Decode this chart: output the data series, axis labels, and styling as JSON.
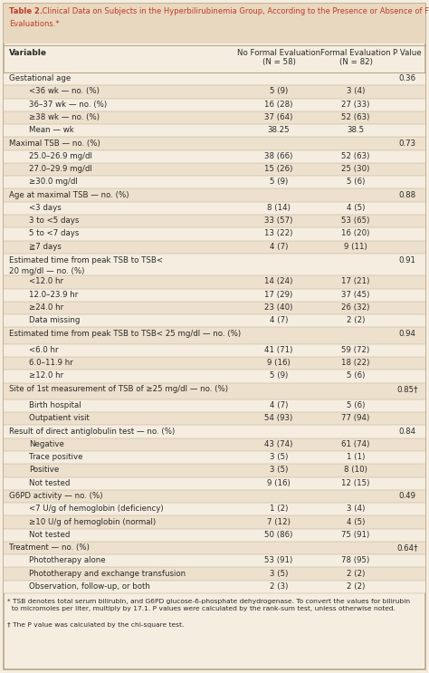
{
  "title_bold": "Table 2.",
  "title_rest": " Clinical Data on Subjects in the Hyperbilirubinemia Group, According to the Presence or Absence of Formal Evaluations.*",
  "col_headers": [
    "Variable",
    "No Formal Evaluation\n(N = 58)",
    "Formal Evaluation\n(N = 82)",
    "P Value"
  ],
  "background_color": "#f5ede0",
  "title_bg": "#e8d8c0",
  "row_light": "#f5ede0",
  "row_dark": "#ede0cc",
  "title_color": "#c0392b",
  "border_color": "#b8a88a",
  "text_color": "#2a2a2a",
  "rows": [
    {
      "label": "Gestational age",
      "val1": "",
      "val2": "",
      "pval": "0.36",
      "indent": false,
      "multiline": false
    },
    {
      "label": "<36 wk — no. (%)",
      "val1": "5 (9)",
      "val2": "3 (4)",
      "pval": "",
      "indent": true,
      "multiline": false
    },
    {
      "label": "36–37 wk — no. (%)",
      "val1": "16 (28)",
      "val2": "27 (33)",
      "pval": "",
      "indent": true,
      "multiline": false
    },
    {
      "label": "≥38 wk — no. (%)",
      "val1": "37 (64)",
      "val2": "52 (63)",
      "pval": "",
      "indent": true,
      "multiline": false
    },
    {
      "label": "Mean — wk",
      "val1": "38.25",
      "val2": "38.5",
      "pval": "",
      "indent": true,
      "multiline": false
    },
    {
      "label": "Maximal TSB — no. (%)",
      "val1": "",
      "val2": "",
      "pval": "0.73",
      "indent": false,
      "multiline": false
    },
    {
      "label": "25.0–26.9 mg/dl",
      "val1": "38 (66)",
      "val2": "52 (63)",
      "pval": "",
      "indent": true,
      "multiline": false
    },
    {
      "label": "27.0–29.9 mg/dl",
      "val1": "15 (26)",
      "val2": "25 (30)",
      "pval": "",
      "indent": true,
      "multiline": false
    },
    {
      "label": "≥30.0 mg/dl",
      "val1": "5 (9)",
      "val2": "5 (6)",
      "pval": "",
      "indent": true,
      "multiline": false
    },
    {
      "label": "Age at maximal TSB — no. (%)",
      "val1": "",
      "val2": "",
      "pval": "0.88",
      "indent": false,
      "multiline": false
    },
    {
      "label": "<3 days",
      "val1": "8 (14)",
      "val2": "4 (5)",
      "pval": "",
      "indent": true,
      "multiline": false
    },
    {
      "label": "3 to <5 days",
      "val1": "33 (57)",
      "val2": "53 (65)",
      "pval": "",
      "indent": true,
      "multiline": false
    },
    {
      "label": "5 to <7 days",
      "val1": "13 (22)",
      "val2": "16 (20)",
      "pval": "",
      "indent": true,
      "multiline": false
    },
    {
      "label": "≧7 days",
      "val1": "4 (7)",
      "val2": "9 (11)",
      "pval": "",
      "indent": true,
      "multiline": false
    },
    {
      "label": "Estimated time from peak TSB to TSB<\n20 mg/dl — no. (%)",
      "val1": "",
      "val2": "",
      "pval": "0.91",
      "indent": false,
      "multiline": true
    },
    {
      "label": "<12.0 hr",
      "val1": "14 (24)",
      "val2": "17 (21)",
      "pval": "",
      "indent": true,
      "multiline": false
    },
    {
      "label": "12.0–23.9 hr",
      "val1": "17 (29)",
      "val2": "37 (45)",
      "pval": "",
      "indent": true,
      "multiline": false
    },
    {
      "label": "≥24.0 hr",
      "val1": "23 (40)",
      "val2": "26 (32)",
      "pval": "",
      "indent": true,
      "multiline": false
    },
    {
      "label": "Data missing",
      "val1": "4 (7)",
      "val2": "2 (2)",
      "pval": "",
      "indent": true,
      "multiline": false
    },
    {
      "label": "Estimated time from peak TSB to TSB< 25 mg/dl — no. (%)",
      "val1": "",
      "val2": "",
      "pval": "0.94",
      "indent": false,
      "multiline": false
    },
    {
      "label": "<6.0 hr",
      "val1": "41 (71)",
      "val2": "59 (72)",
      "pval": "",
      "indent": true,
      "multiline": false
    },
    {
      "label": "6.0–11.9 hr",
      "val1": "9 (16)",
      "val2": "18 (22)",
      "pval": "",
      "indent": true,
      "multiline": false
    },
    {
      "label": "≥12.0 hr",
      "val1": "5 (9)",
      "val2": "5 (6)",
      "pval": "",
      "indent": true,
      "multiline": false
    },
    {
      "label": "Site of 1st measurement of TSB of ≥25 mg/dl — no. (%)",
      "val1": "",
      "val2": "",
      "pval": "0.85†",
      "indent": false,
      "multiline": false
    },
    {
      "label": "Birth hospital",
      "val1": "4 (7)",
      "val2": "5 (6)",
      "pval": "",
      "indent": true,
      "multiline": false
    },
    {
      "label": "Outpatient visit",
      "val1": "54 (93)",
      "val2": "77 (94)",
      "pval": "",
      "indent": true,
      "multiline": false
    },
    {
      "label": "Result of direct antiglobulin test — no. (%)",
      "val1": "",
      "val2": "",
      "pval": "0.84",
      "indent": false,
      "multiline": false
    },
    {
      "label": "Negative",
      "val1": "43 (74)",
      "val2": "61 (74)",
      "pval": "",
      "indent": true,
      "multiline": false
    },
    {
      "label": "Trace positive",
      "val1": "3 (5)",
      "val2": "1 (1)",
      "pval": "",
      "indent": true,
      "multiline": false
    },
    {
      "label": "Positive",
      "val1": "3 (5)",
      "val2": "8 (10)",
      "pval": "",
      "indent": true,
      "multiline": false
    },
    {
      "label": "Not tested",
      "val1": "9 (16)",
      "val2": "12 (15)",
      "pval": "",
      "indent": true,
      "multiline": false
    },
    {
      "label": "G6PD activity — no. (%)",
      "val1": "",
      "val2": "",
      "pval": "0.49",
      "indent": false,
      "multiline": false
    },
    {
      "label": "<7 U/g of hemoglobin (deficiency)",
      "val1": "1 (2)",
      "val2": "3 (4)",
      "pval": "",
      "indent": true,
      "multiline": false
    },
    {
      "label": "≥10 U/g of hemoglobin (normal)",
      "val1": "7 (12)",
      "val2": "4 (5)",
      "pval": "",
      "indent": true,
      "multiline": false
    },
    {
      "label": "Not tested",
      "val1": "50 (86)",
      "val2": "75 (91)",
      "pval": "",
      "indent": true,
      "multiline": false
    },
    {
      "label": "Treatment — no. (%)",
      "val1": "",
      "val2": "",
      "pval": "0.64†",
      "indent": false,
      "multiline": false
    },
    {
      "label": "Phototherapy alone",
      "val1": "53 (91)",
      "val2": "78 (95)",
      "pval": "",
      "indent": true,
      "multiline": false
    },
    {
      "label": "Phototherapy and exchange transfusion",
      "val1": "3 (5)",
      "val2": "2 (2)",
      "pval": "",
      "indent": true,
      "multiline": false
    },
    {
      "label": "Observation, follow-up, or both",
      "val1": "2 (3)",
      "val2": "2 (2)",
      "pval": "",
      "indent": true,
      "multiline": false
    }
  ],
  "footnote1": "* TSB denotes total serum bilirubin, and G6PD glucose-6-phosphate dehydrogenase. To convert the values for bilirubin\n  to micromoles per liter, multiply by 17.1. P values were calculated by the rank-sum test, unless otherwise noted.",
  "footnote2": "† The P value was calculated by the chi-square test."
}
